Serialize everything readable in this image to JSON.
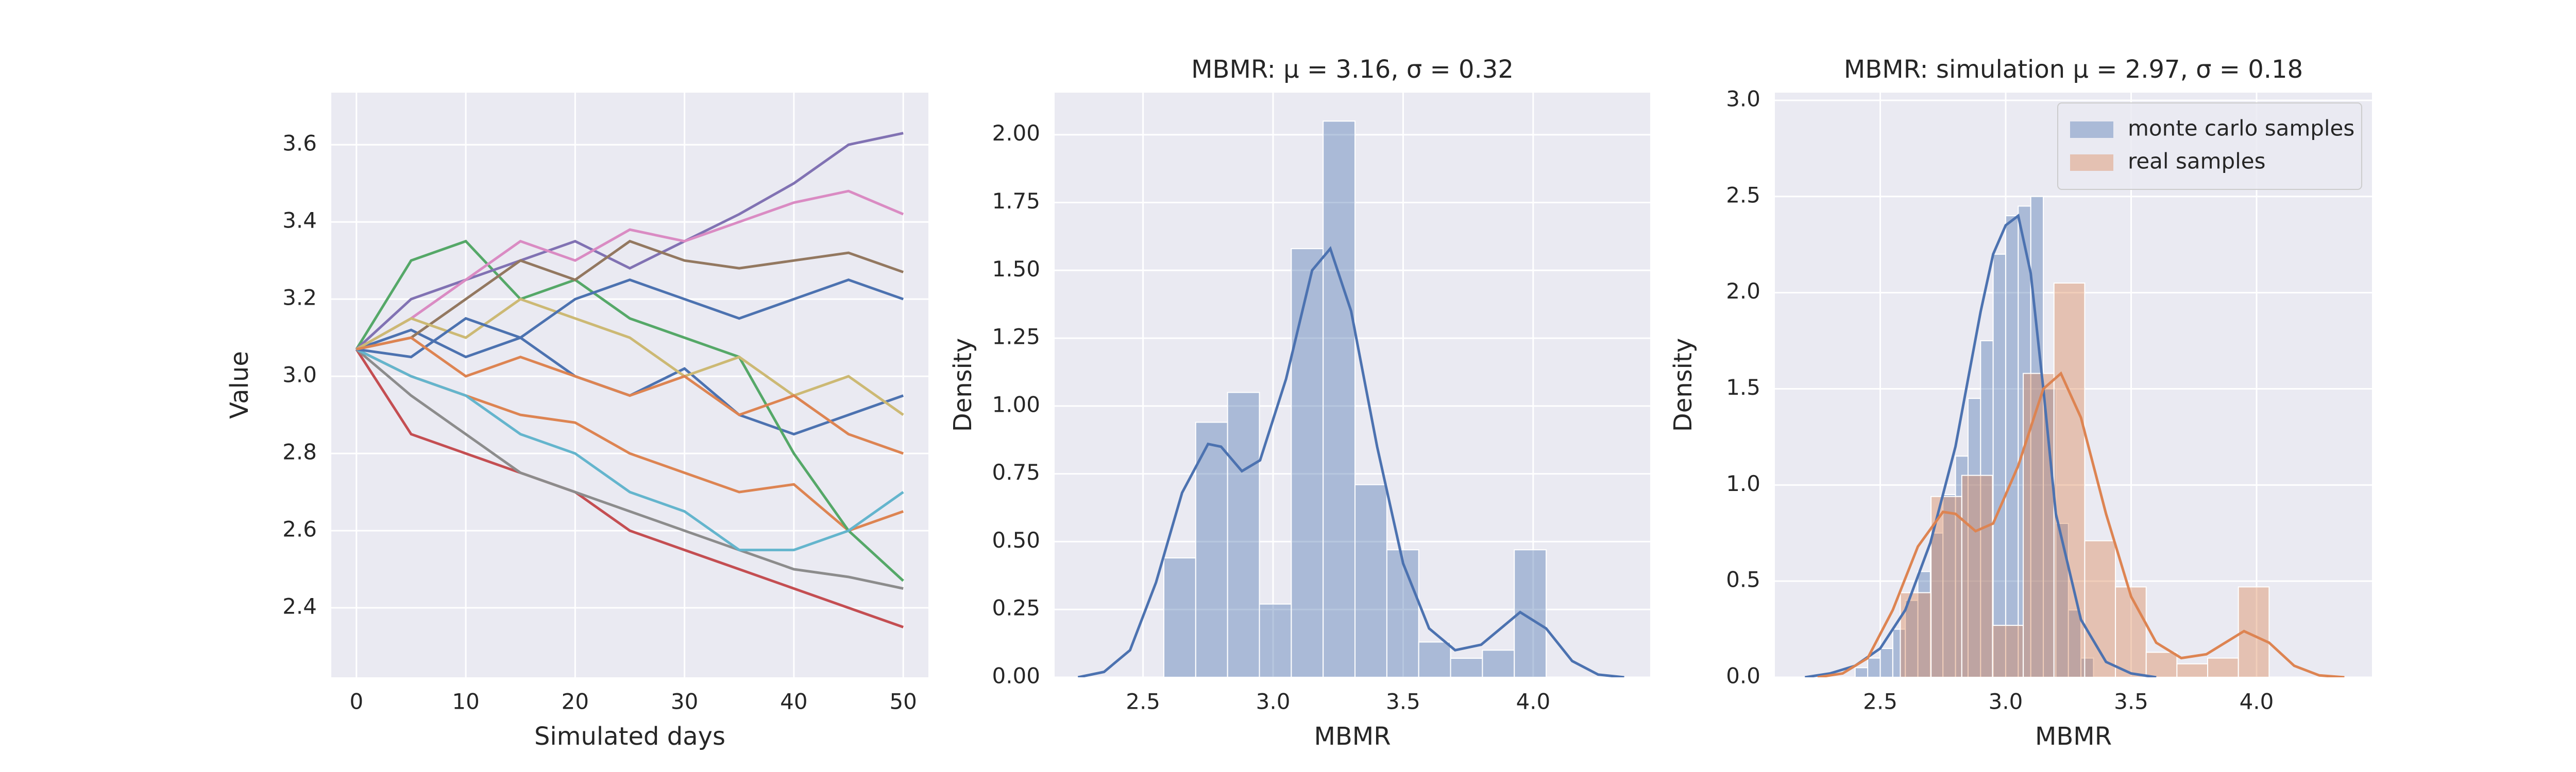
{
  "chart_data": [
    {
      "type": "line",
      "xlabel": "Simulated days",
      "ylabel": "Value",
      "x": [
        0,
        5,
        10,
        15,
        20,
        25,
        30,
        35,
        40,
        45,
        50
      ],
      "series": [
        {
          "color": "#4c72b0",
          "values": [
            3.07,
            3.12,
            3.05,
            3.1,
            3.0,
            2.95,
            3.02,
            2.9,
            2.85,
            2.9,
            2.95
          ]
        },
        {
          "color": "#dd8452",
          "values": [
            3.07,
            3.0,
            2.95,
            2.9,
            2.88,
            2.8,
            2.75,
            2.7,
            2.72,
            2.6,
            2.65
          ]
        },
        {
          "color": "#55a868",
          "values": [
            3.07,
            3.3,
            3.35,
            3.2,
            3.25,
            3.15,
            3.1,
            3.05,
            2.8,
            2.6,
            2.47
          ]
        },
        {
          "color": "#c44e52",
          "values": [
            3.07,
            2.85,
            2.8,
            2.75,
            2.7,
            2.6,
            2.55,
            2.5,
            2.45,
            2.4,
            2.35
          ]
        },
        {
          "color": "#8172b3",
          "values": [
            3.07,
            3.2,
            3.25,
            3.3,
            3.35,
            3.28,
            3.35,
            3.42,
            3.5,
            3.6,
            3.63
          ]
        },
        {
          "color": "#937860",
          "values": [
            3.07,
            3.1,
            3.2,
            3.3,
            3.25,
            3.35,
            3.3,
            3.28,
            3.3,
            3.32,
            3.27
          ]
        },
        {
          "color": "#da8bc3",
          "values": [
            3.07,
            3.15,
            3.25,
            3.35,
            3.3,
            3.38,
            3.35,
            3.4,
            3.45,
            3.48,
            3.42
          ]
        },
        {
          "color": "#8c8c8c",
          "values": [
            3.07,
            2.95,
            2.85,
            2.75,
            2.7,
            2.65,
            2.6,
            2.55,
            2.5,
            2.48,
            2.45
          ]
        },
        {
          "color": "#ccb974",
          "values": [
            3.07,
            3.15,
            3.1,
            3.2,
            3.15,
            3.1,
            3.0,
            3.05,
            2.95,
            3.0,
            2.9
          ]
        },
        {
          "color": "#64b5cd",
          "values": [
            3.07,
            3.0,
            2.95,
            2.85,
            2.8,
            2.7,
            2.65,
            2.55,
            2.55,
            2.6,
            2.7
          ]
        },
        {
          "color": "#4c72b0",
          "values": [
            3.07,
            3.05,
            3.15,
            3.1,
            3.2,
            3.25,
            3.2,
            3.15,
            3.2,
            3.25,
            3.2
          ]
        },
        {
          "color": "#dd8452",
          "values": [
            3.07,
            3.1,
            3.0,
            3.05,
            3.0,
            2.95,
            3.0,
            2.9,
            2.95,
            2.85,
            2.8
          ]
        }
      ],
      "xlim": [
        -2.3,
        52.3
      ],
      "xticks": [
        0,
        10,
        20,
        30,
        40,
        50
      ],
      "ylim": [
        2.22,
        3.735
      ],
      "yticks": [
        2.4,
        2.6,
        2.8,
        {
          "value": 3,
          "label": "3.0"
        },
        3.2,
        3.4,
        3.6
      ],
      "grid": true
    },
    {
      "type": "histogram",
      "title": "MBMR: μ = 3.16, σ = 0.32",
      "xlabel": "MBMR",
      "ylabel": "Density",
      "series": [
        {
          "color": "#4c72b0",
          "bins": [
            2.58,
            2.7025,
            2.825,
            2.9475,
            3.07,
            3.1925,
            3.315,
            3.4375,
            3.56,
            3.6825,
            3.805,
            3.9275,
            4.05
          ],
          "values": [
            0.44,
            0.94,
            1.05,
            0.27,
            1.58,
            2.05,
            0.71,
            0.47,
            0.13,
            0.07,
            0.1,
            0.47
          ],
          "kde_x": [
            2.25,
            2.35,
            2.45,
            2.55,
            2.65,
            2.75,
            2.8,
            2.88,
            2.95,
            3.05,
            3.15,
            3.22,
            3.3,
            3.4,
            3.5,
            3.6,
            3.7,
            3.8,
            3.9,
            3.95,
            4.05,
            4.15,
            4.25,
            4.35
          ],
          "kde_values": [
            0,
            0.02,
            0.1,
            0.35,
            0.68,
            0.86,
            0.85,
            0.76,
            0.8,
            1.1,
            1.5,
            1.58,
            1.35,
            0.85,
            0.42,
            0.18,
            0.1,
            0.12,
            0.2,
            0.24,
            0.18,
            0.06,
            0.01,
            0
          ]
        }
      ],
      "xlim": [
        2.16,
        4.45
      ],
      "xticks": [
        2.5,
        {
          "value": 3,
          "label": "3.0"
        },
        3.5,
        {
          "value": 4,
          "label": "4.0"
        }
      ],
      "ylim": [
        0,
        2.155
      ],
      "yticks": [
        {
          "value": 0,
          "label": "0.00"
        },
        {
          "value": 0.25,
          "label": "0.25"
        },
        {
          "value": 0.5,
          "label": "0.50"
        },
        {
          "value": 0.75,
          "label": "0.75"
        },
        {
          "value": 1,
          "label": "1.00"
        },
        {
          "value": 1.25,
          "label": "1.25"
        },
        {
          "value": 1.5,
          "label": "1.50"
        },
        {
          "value": 1.75,
          "label": "1.75"
        },
        {
          "value": 2,
          "label": "2.00"
        }
      ],
      "grid": true
    },
    {
      "type": "histogram",
      "title": "MBMR: simulation μ = 2.97, σ = 0.18",
      "xlabel": "MBMR",
      "ylabel": "Density",
      "legend": "upper right",
      "series": [
        {
          "name": "monte carlo samples",
          "color": "#4c72b0",
          "bins": [
            2.4,
            2.45,
            2.5,
            2.55,
            2.6,
            2.65,
            2.7,
            2.75,
            2.8,
            2.85,
            2.9,
            2.95,
            3.0,
            3.05,
            3.1,
            3.15,
            3.2,
            3.25,
            3.3,
            3.35
          ],
          "values": [
            0.05,
            0.1,
            0.15,
            0.25,
            0.4,
            0.55,
            0.75,
            0.95,
            1.15,
            1.45,
            1.75,
            2.2,
            2.4,
            2.45,
            2.5,
            1.5,
            0.8,
            0.35,
            0.1
          ],
          "kde_x": [
            2.2,
            2.3,
            2.4,
            2.5,
            2.6,
            2.7,
            2.8,
            2.9,
            2.95,
            3.0,
            3.05,
            3.1,
            3.15,
            3.2,
            3.3,
            3.4,
            3.5,
            3.6
          ],
          "kde_values": [
            0,
            0.02,
            0.06,
            0.15,
            0.35,
            0.7,
            1.2,
            1.9,
            2.2,
            2.35,
            2.4,
            2.1,
            1.5,
            0.85,
            0.3,
            0.08,
            0.02,
            0
          ]
        },
        {
          "name": "real samples",
          "color": "#dd8452",
          "bins": [
            2.58,
            2.7025,
            2.825,
            2.9475,
            3.07,
            3.1925,
            3.315,
            3.4375,
            3.56,
            3.6825,
            3.805,
            3.9275,
            4.05
          ],
          "values": [
            0.44,
            0.94,
            1.05,
            0.27,
            1.58,
            2.05,
            0.71,
            0.47,
            0.13,
            0.07,
            0.1,
            0.47
          ],
          "kde_x": [
            2.25,
            2.35,
            2.45,
            2.55,
            2.65,
            2.75,
            2.8,
            2.88,
            2.95,
            3.05,
            3.15,
            3.22,
            3.3,
            3.4,
            3.5,
            3.6,
            3.7,
            3.8,
            3.9,
            3.95,
            4.05,
            4.15,
            4.25,
            4.35
          ],
          "kde_values": [
            0,
            0.02,
            0.1,
            0.35,
            0.68,
            0.86,
            0.85,
            0.76,
            0.8,
            1.1,
            1.5,
            1.58,
            1.35,
            0.85,
            0.42,
            0.18,
            0.1,
            0.12,
            0.2,
            0.24,
            0.18,
            0.06,
            0.01,
            0
          ]
        }
      ],
      "xlim": [
        2.08,
        4.46
      ],
      "xticks": [
        2.5,
        {
          "value": 3,
          "label": "3.0"
        },
        3.5,
        {
          "value": 4,
          "label": "4.0"
        }
      ],
      "ylim": [
        0,
        3.04
      ],
      "yticks": [
        {
          "value": 0,
          "label": "0.0"
        },
        0.5,
        {
          "value": 1,
          "label": "1.0"
        },
        1.5,
        {
          "value": 2,
          "label": "2.0"
        },
        2.5,
        {
          "value": 3,
          "label": "3.0"
        }
      ],
      "grid": true
    }
  ]
}
